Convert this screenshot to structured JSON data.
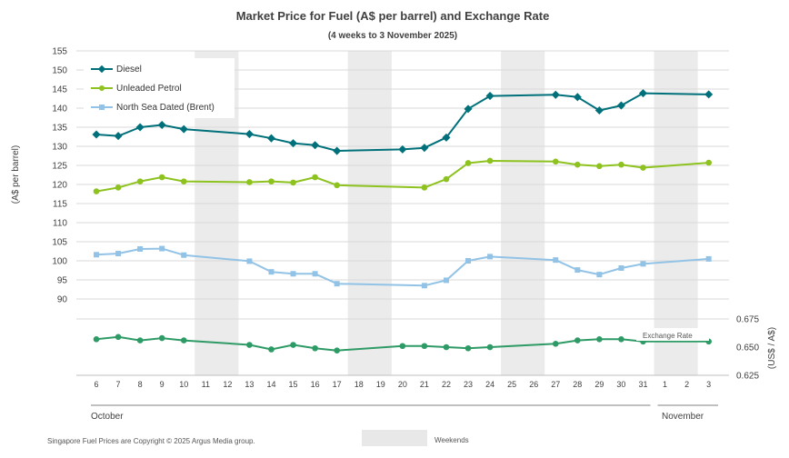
{
  "chart_data": {
    "type": "line",
    "title": "Market Price for Fuel (A$ per barrel) and Exchange Rate",
    "subtitle": "(4 weeks to 3 November 2025)",
    "ylabel": "(A$ per barrel)",
    "y2label": "(US$ / A$)",
    "ylim": [
      90,
      155
    ],
    "yticks": [
      "90",
      "95",
      "100",
      "105",
      "110",
      "115",
      "120",
      "125",
      "130",
      "135",
      "140",
      "145",
      "150",
      "155"
    ],
    "y2lim": [
      0.625,
      0.675
    ],
    "y2ticks": [
      "0.625",
      "0.650",
      "0.675"
    ],
    "days": [
      "6",
      "7",
      "8",
      "9",
      "10",
      "11",
      "12",
      "13",
      "14",
      "15",
      "16",
      "17",
      "18",
      "19",
      "20",
      "21",
      "22",
      "23",
      "24",
      "25",
      "26",
      "27",
      "28",
      "29",
      "30",
      "31",
      "1",
      "2",
      "3"
    ],
    "months": [
      "October",
      "November"
    ],
    "weekend_pairs": [
      [
        "11",
        "12"
      ],
      [
        "18",
        "19"
      ],
      [
        "25",
        "26"
      ],
      [
        "1",
        "2"
      ]
    ],
    "series": [
      {
        "name": "Diesel",
        "color": "#00707a",
        "marker": "diamond",
        "values": [
          133.1,
          132.7,
          135.0,
          135.6,
          134.5,
          null,
          null,
          133.2,
          132.1,
          130.8,
          130.3,
          128.8,
          null,
          null,
          129.2,
          129.6,
          132.3,
          139.8,
          143.2,
          null,
          null,
          143.5,
          142.9,
          139.4,
          140.7,
          143.9,
          null,
          null,
          143.6
        ]
      },
      {
        "name": "Unleaded Petrol",
        "color": "#8dc21f",
        "marker": "circle",
        "values": [
          118.2,
          119.2,
          120.8,
          121.9,
          120.8,
          null,
          null,
          120.6,
          120.8,
          120.5,
          121.9,
          119.8,
          null,
          null,
          null,
          119.2,
          121.4,
          125.6,
          126.2,
          null,
          null,
          126.0,
          125.2,
          124.8,
          125.2,
          124.4,
          null,
          null,
          125.7
        ]
      },
      {
        "name": "North Sea Dated (Brent)",
        "color": "#92c3e6",
        "marker": "square",
        "values": [
          101.6,
          101.9,
          103.1,
          103.2,
          101.5,
          null,
          null,
          99.9,
          97.1,
          96.6,
          96.6,
          94.0,
          null,
          null,
          null,
          93.5,
          94.9,
          100.0,
          101.1,
          null,
          null,
          100.2,
          97.6,
          96.4,
          98.1,
          99.2,
          null,
          null,
          100.5
        ]
      },
      {
        "name": "Exchange Rate",
        "color": "#2e9b66",
        "marker": "circle",
        "values": [
          0.657,
          0.659,
          0.656,
          0.658,
          0.656,
          null,
          null,
          0.652,
          0.648,
          0.652,
          0.649,
          0.647,
          null,
          null,
          0.651,
          0.651,
          0.65,
          0.649,
          0.65,
          null,
          null,
          0.653,
          0.656,
          0.657,
          0.657,
          0.655,
          null,
          null,
          0.655
        ]
      }
    ],
    "exchange_label": "Exchange Rate",
    "footer": "Singapore Fuel Prices are Copyright © 2025 Argus Media group.",
    "weekends_label": "Weekends"
  }
}
